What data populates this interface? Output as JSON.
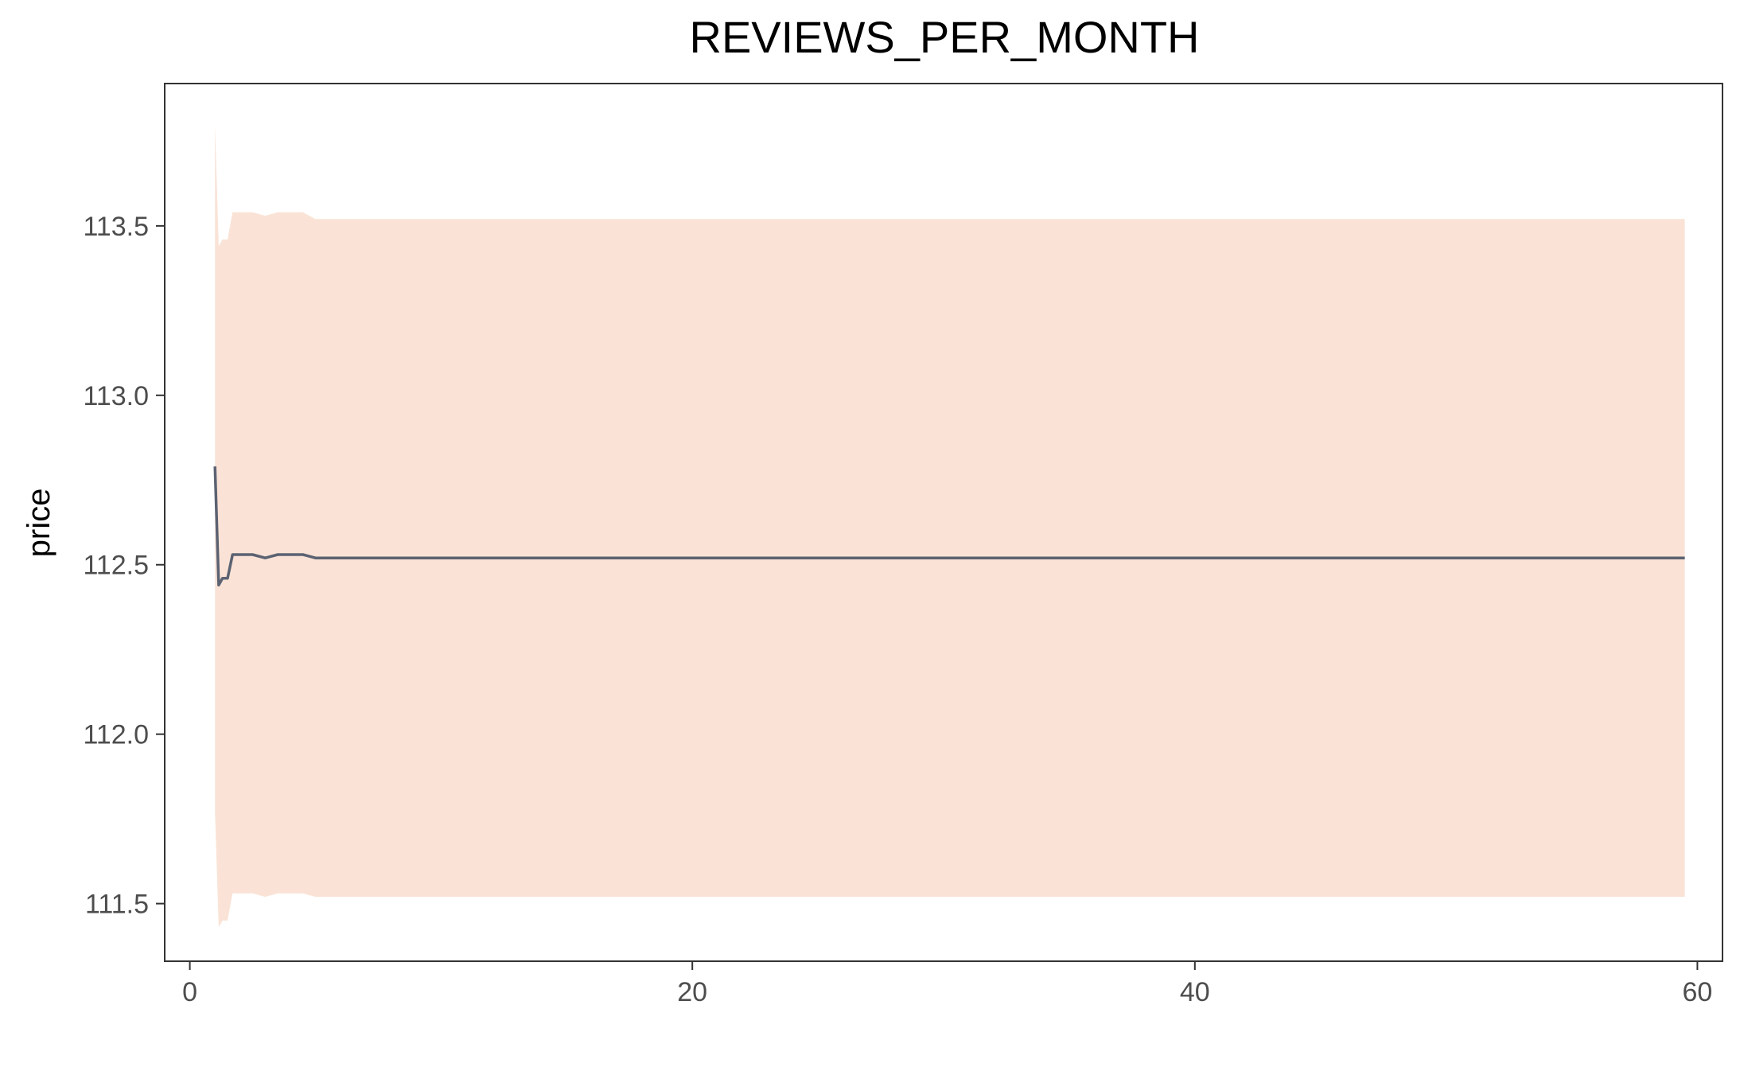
{
  "chart_data": {
    "type": "area",
    "title": "REVIEWS_PER_MONTH",
    "xlabel": "",
    "ylabel": "price",
    "xlim": [
      -1.0,
      61.0
    ],
    "ylim": [
      111.33,
      113.92
    ],
    "x_ticks": [
      0,
      20,
      40,
      60
    ],
    "x_tick_labels": [
      "0",
      "20",
      "40",
      "60"
    ],
    "y_ticks": [
      111.5,
      112.0,
      112.5,
      113.0,
      113.5
    ],
    "y_tick_labels": [
      "111.5",
      "112.0",
      "112.5",
      "113.0",
      "113.5"
    ],
    "grid": false,
    "legend": "none",
    "colors": {
      "line": "#5b6272",
      "band": "#fae3d6",
      "frame": "#333333",
      "tick": "#333333"
    },
    "series": [
      {
        "kind": "line",
        "x": [
          1.0,
          1.15,
          1.3,
          1.5,
          1.7,
          2.0,
          2.5,
          3.0,
          3.5,
          4.0,
          4.5,
          5.0,
          59.5
        ],
        "y": [
          112.79,
          112.44,
          112.46,
          112.46,
          112.53,
          112.53,
          112.53,
          112.52,
          112.53,
          112.53,
          112.53,
          112.52,
          112.52
        ]
      },
      {
        "kind": "band",
        "x": [
          1.0,
          1.15,
          1.3,
          1.5,
          1.7,
          2.0,
          2.5,
          3.0,
          3.5,
          4.0,
          4.5,
          5.0,
          59.5
        ],
        "upper": [
          113.8,
          113.44,
          113.46,
          113.46,
          113.54,
          113.54,
          113.54,
          113.53,
          113.54,
          113.54,
          113.54,
          113.52,
          113.52
        ],
        "lower": [
          111.77,
          111.43,
          111.45,
          111.45,
          111.53,
          111.53,
          111.53,
          111.52,
          111.53,
          111.53,
          111.53,
          111.52,
          111.52
        ]
      }
    ]
  }
}
